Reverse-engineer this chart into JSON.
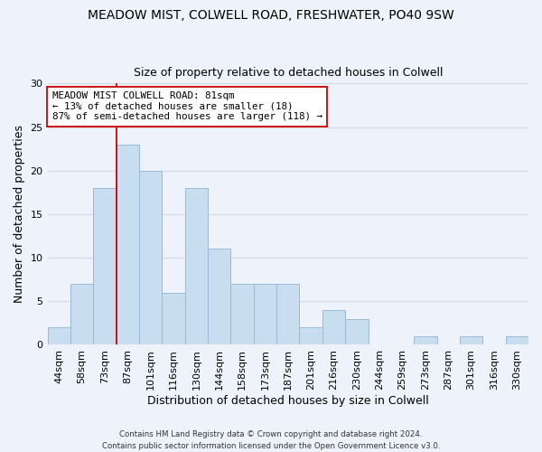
{
  "title": "MEADOW MIST, COLWELL ROAD, FRESHWATER, PO40 9SW",
  "subtitle": "Size of property relative to detached houses in Colwell",
  "xlabel": "Distribution of detached houses by size in Colwell",
  "ylabel": "Number of detached properties",
  "bar_labels": [
    "44sqm",
    "58sqm",
    "73sqm",
    "87sqm",
    "101sqm",
    "116sqm",
    "130sqm",
    "144sqm",
    "158sqm",
    "173sqm",
    "187sqm",
    "201sqm",
    "216sqm",
    "230sqm",
    "244sqm",
    "259sqm",
    "273sqm",
    "287sqm",
    "301sqm",
    "316sqm",
    "330sqm"
  ],
  "bar_values": [
    2,
    7,
    18,
    23,
    20,
    6,
    18,
    11,
    7,
    7,
    7,
    2,
    4,
    3,
    0,
    0,
    1,
    0,
    1,
    0,
    1
  ],
  "bar_color": "#c9ddf0",
  "bar_edge_color": "#9bbad4",
  "vline_x_index": 3,
  "vline_color": "#cc0000",
  "annotation_line1": "MEADOW MIST COLWELL ROAD: 81sqm",
  "annotation_line2": "← 13% of detached houses are smaller (18)",
  "annotation_line3": "87% of semi-detached houses are larger (118) →",
  "annotation_box_edgecolor": "#cc0000",
  "annotation_box_facecolor": "#ffffff",
  "ylim": [
    0,
    30
  ],
  "yticks": [
    0,
    5,
    10,
    15,
    20,
    25,
    30
  ],
  "footer_line1": "Contains HM Land Registry data © Crown copyright and database right 2024.",
  "footer_line2": "Contains public sector information licensed under the Open Government Licence v3.0.",
  "background_color": "#eef2fa",
  "plot_bg_color": "#eef2fa",
  "grid_color": "#d0d8e8",
  "title_fontsize": 10,
  "subtitle_fontsize": 9,
  "axis_label_fontsize": 9,
  "tick_fontsize": 8
}
